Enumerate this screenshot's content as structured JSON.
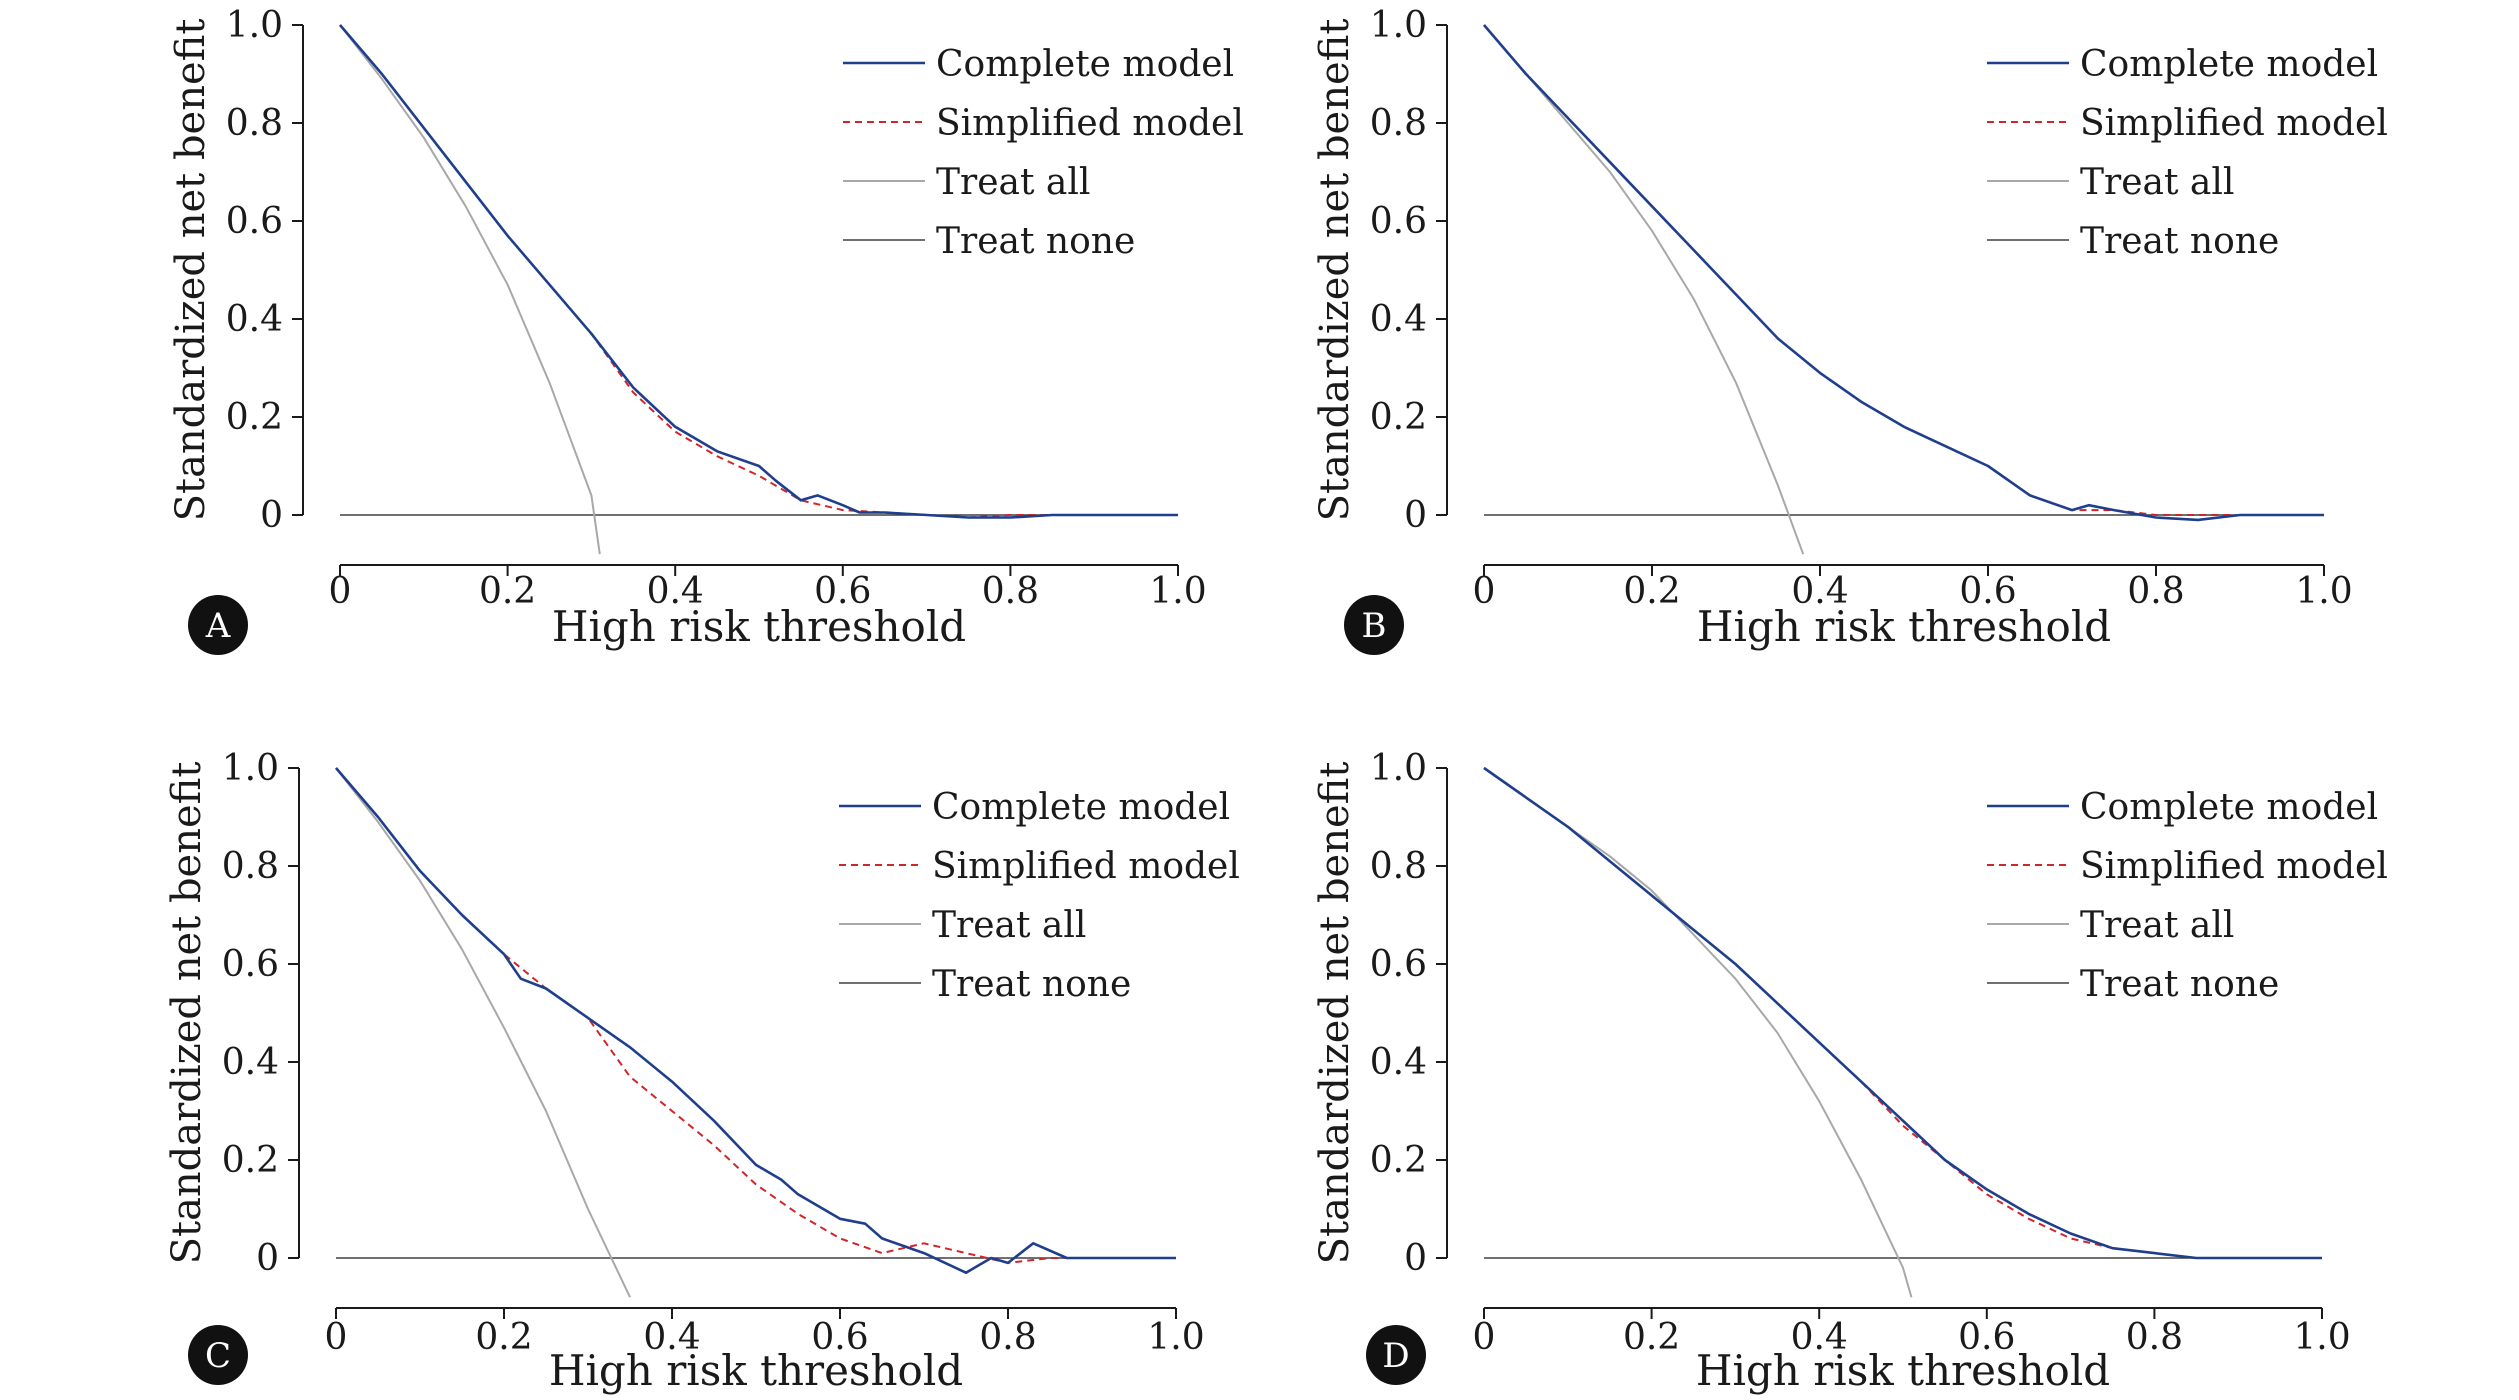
{
  "colors": {
    "complete": "#1f3f8c",
    "simplified": "#d0262a",
    "treat_all": "#a8a8a8",
    "treat_none": "#404040",
    "axis": "#1a1a1a",
    "badge": "#111111"
  },
  "chart_data": [
    {
      "panel": "A",
      "type": "line",
      "xlabel": "High risk threshold",
      "ylabel": "Standardized net benefit",
      "xlim": [
        0,
        1
      ],
      "ylim": [
        0,
        1
      ],
      "x_ticks": [
        "0",
        "0.2",
        "0.4",
        "0.6",
        "0.8",
        "1.0"
      ],
      "y_ticks": [
        "0",
        "0.2",
        "0.4",
        "0.6",
        "0.8",
        "1.0"
      ],
      "grid": false,
      "legend_placement": "top-right",
      "series": [
        {
          "name": "Complete model",
          "key": "complete",
          "x": [
            0,
            0.05,
            0.1,
            0.15,
            0.2,
            0.25,
            0.3,
            0.35,
            0.4,
            0.45,
            0.5,
            0.52,
            0.55,
            0.57,
            0.6,
            0.62,
            0.65,
            0.7,
            0.75,
            0.8,
            0.85,
            0.9,
            0.95,
            1.0
          ],
          "y": [
            1.0,
            0.9,
            0.79,
            0.68,
            0.57,
            0.47,
            0.37,
            0.26,
            0.18,
            0.13,
            0.1,
            0.07,
            0.03,
            0.04,
            0.02,
            0.005,
            0.005,
            0.0,
            -0.005,
            -0.005,
            0.0,
            0.0,
            0.0,
            0.0
          ]
        },
        {
          "name": "Simplified model",
          "key": "simplified",
          "x": [
            0,
            0.05,
            0.1,
            0.15,
            0.2,
            0.25,
            0.3,
            0.35,
            0.4,
            0.45,
            0.5,
            0.55,
            0.6,
            0.65,
            0.7,
            0.75,
            0.8,
            0.85,
            0.9,
            0.95,
            1.0
          ],
          "y": [
            1.0,
            0.9,
            0.79,
            0.68,
            0.57,
            0.47,
            0.37,
            0.25,
            0.17,
            0.12,
            0.08,
            0.03,
            0.01,
            0.005,
            0.0,
            -0.005,
            0.0,
            0.0,
            0.0,
            0.0,
            0.0
          ]
        },
        {
          "name": "Treat all",
          "key": "treat_all",
          "x": [
            0,
            0.05,
            0.1,
            0.15,
            0.2,
            0.25,
            0.3,
            0.31
          ],
          "y": [
            1.0,
            0.89,
            0.77,
            0.63,
            0.47,
            0.27,
            0.04,
            -0.08
          ]
        },
        {
          "name": "Treat none",
          "key": "treat_none",
          "x": [
            0,
            1.0
          ],
          "y": [
            0,
            0
          ]
        }
      ]
    },
    {
      "panel": "B",
      "type": "line",
      "xlabel": "High risk threshold",
      "ylabel": "Standardized net benefit",
      "xlim": [
        0,
        1
      ],
      "ylim": [
        0,
        1
      ],
      "x_ticks": [
        "0",
        "0.2",
        "0.4",
        "0.6",
        "0.8",
        "1.0"
      ],
      "y_ticks": [
        "0",
        "0.2",
        "0.4",
        "0.6",
        "0.8",
        "1.0"
      ],
      "grid": false,
      "legend_placement": "top-right",
      "series": [
        {
          "name": "Complete model",
          "key": "complete",
          "x": [
            0,
            0.05,
            0.1,
            0.15,
            0.2,
            0.25,
            0.3,
            0.35,
            0.4,
            0.45,
            0.5,
            0.55,
            0.6,
            0.65,
            0.7,
            0.72,
            0.75,
            0.8,
            0.85,
            0.9,
            0.95,
            1.0
          ],
          "y": [
            1.0,
            0.9,
            0.81,
            0.72,
            0.63,
            0.54,
            0.45,
            0.36,
            0.29,
            0.23,
            0.18,
            0.14,
            0.1,
            0.04,
            0.01,
            0.02,
            0.01,
            -0.005,
            -0.01,
            0.0,
            0.0,
            0.0
          ]
        },
        {
          "name": "Simplified model",
          "key": "simplified",
          "x": [
            0,
            0.05,
            0.1,
            0.15,
            0.2,
            0.25,
            0.3,
            0.35,
            0.4,
            0.45,
            0.5,
            0.55,
            0.6,
            0.65,
            0.7,
            0.75,
            0.8,
            0.85,
            0.9,
            0.95,
            1.0
          ],
          "y": [
            1.0,
            0.9,
            0.81,
            0.72,
            0.63,
            0.54,
            0.45,
            0.36,
            0.29,
            0.23,
            0.18,
            0.14,
            0.1,
            0.04,
            0.01,
            0.01,
            0.0,
            0.0,
            0.0,
            0.0,
            0.0
          ]
        },
        {
          "name": "Treat all",
          "key": "treat_all",
          "x": [
            0,
            0.05,
            0.1,
            0.15,
            0.2,
            0.25,
            0.3,
            0.35,
            0.38
          ],
          "y": [
            1.0,
            0.9,
            0.8,
            0.7,
            0.58,
            0.44,
            0.27,
            0.06,
            -0.08
          ]
        },
        {
          "name": "Treat none",
          "key": "treat_none",
          "x": [
            0,
            1.0
          ],
          "y": [
            0,
            0
          ]
        }
      ]
    },
    {
      "panel": "C",
      "type": "line",
      "xlabel": "High risk threshold",
      "ylabel": "Standardized net benefit",
      "xlim": [
        0,
        1
      ],
      "ylim": [
        0,
        1
      ],
      "x_ticks": [
        "0",
        "0.2",
        "0.4",
        "0.6",
        "0.8",
        "1.0"
      ],
      "y_ticks": [
        "0",
        "0.2",
        "0.4",
        "0.6",
        "0.8",
        "1.0"
      ],
      "grid": false,
      "legend_placement": "top-right",
      "series": [
        {
          "name": "Complete model",
          "key": "complete",
          "x": [
            0,
            0.05,
            0.1,
            0.15,
            0.2,
            0.22,
            0.25,
            0.3,
            0.35,
            0.4,
            0.45,
            0.5,
            0.53,
            0.55,
            0.6,
            0.63,
            0.65,
            0.7,
            0.75,
            0.78,
            0.8,
            0.83,
            0.87,
            0.9,
            0.95,
            1.0
          ],
          "y": [
            1.0,
            0.9,
            0.79,
            0.7,
            0.62,
            0.57,
            0.55,
            0.49,
            0.43,
            0.36,
            0.28,
            0.19,
            0.16,
            0.13,
            0.08,
            0.07,
            0.04,
            0.01,
            -0.03,
            0.0,
            -0.01,
            0.03,
            0.0,
            0.0,
            0.0,
            0.0
          ]
        },
        {
          "name": "Simplified model",
          "key": "simplified",
          "x": [
            0,
            0.05,
            0.1,
            0.15,
            0.2,
            0.25,
            0.3,
            0.35,
            0.4,
            0.45,
            0.5,
            0.55,
            0.6,
            0.65,
            0.7,
            0.75,
            0.8,
            0.85,
            0.9,
            0.95,
            1.0
          ],
          "y": [
            1.0,
            0.9,
            0.79,
            0.7,
            0.62,
            0.55,
            0.49,
            0.37,
            0.3,
            0.23,
            0.15,
            0.09,
            0.04,
            0.01,
            0.03,
            0.01,
            -0.01,
            0.0,
            0.0,
            0.0,
            0.0
          ]
        },
        {
          "name": "Treat all",
          "key": "treat_all",
          "x": [
            0,
            0.05,
            0.1,
            0.15,
            0.2,
            0.25,
            0.3,
            0.35
          ],
          "y": [
            1.0,
            0.89,
            0.77,
            0.63,
            0.47,
            0.3,
            0.1,
            -0.08
          ]
        },
        {
          "name": "Treat none",
          "key": "treat_none",
          "x": [
            0,
            1.0
          ],
          "y": [
            0,
            0
          ]
        }
      ]
    },
    {
      "panel": "D",
      "type": "line",
      "xlabel": "High risk threshold",
      "ylabel": "Standardized net benefit",
      "xlim": [
        0,
        1
      ],
      "ylim": [
        0,
        1
      ],
      "x_ticks": [
        "0",
        "0.2",
        "0.4",
        "0.6",
        "0.8",
        "1.0"
      ],
      "y_ticks": [
        "0",
        "0.2",
        "0.4",
        "0.6",
        "0.8",
        "1.0"
      ],
      "grid": false,
      "legend_placement": "top-right",
      "series": [
        {
          "name": "Complete model",
          "key": "complete",
          "x": [
            0,
            0.05,
            0.1,
            0.15,
            0.2,
            0.25,
            0.3,
            0.35,
            0.4,
            0.45,
            0.5,
            0.55,
            0.6,
            0.65,
            0.7,
            0.75,
            0.8,
            0.85,
            0.9,
            0.95,
            1.0
          ],
          "y": [
            1.0,
            0.94,
            0.88,
            0.81,
            0.74,
            0.67,
            0.6,
            0.52,
            0.44,
            0.36,
            0.28,
            0.2,
            0.14,
            0.09,
            0.05,
            0.02,
            0.01,
            0.0,
            0.0,
            0.0,
            0.0
          ]
        },
        {
          "name": "Simplified model",
          "key": "simplified",
          "x": [
            0,
            0.05,
            0.1,
            0.15,
            0.2,
            0.25,
            0.3,
            0.35,
            0.4,
            0.45,
            0.5,
            0.55,
            0.6,
            0.65,
            0.7,
            0.75,
            0.8,
            0.85,
            0.9,
            0.95,
            1.0
          ],
          "y": [
            1.0,
            0.94,
            0.88,
            0.81,
            0.74,
            0.67,
            0.6,
            0.52,
            0.44,
            0.36,
            0.27,
            0.2,
            0.13,
            0.08,
            0.04,
            0.02,
            0.01,
            0.0,
            0.0,
            0.0,
            0.0
          ]
        },
        {
          "name": "Treat all",
          "key": "treat_all",
          "x": [
            0,
            0.05,
            0.1,
            0.15,
            0.2,
            0.25,
            0.3,
            0.35,
            0.4,
            0.45,
            0.5,
            0.51
          ],
          "y": [
            1.0,
            0.94,
            0.88,
            0.82,
            0.75,
            0.66,
            0.57,
            0.46,
            0.32,
            0.16,
            -0.02,
            -0.08
          ]
        },
        {
          "name": "Treat none",
          "key": "treat_none",
          "x": [
            0,
            1.0
          ],
          "y": [
            0,
            0
          ]
        }
      ]
    }
  ]
}
